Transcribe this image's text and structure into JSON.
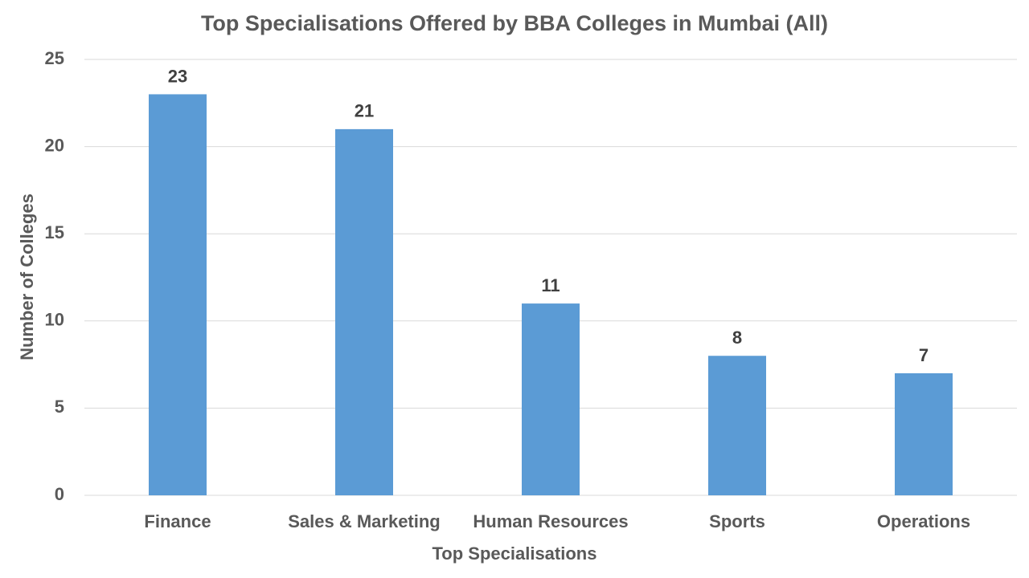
{
  "chart_data": {
    "type": "bar",
    "title": "Top Specialisations Offered by BBA Colleges in Mumbai (All)",
    "x_label": "Top Specialisations",
    "y_label": "Number of Colleges",
    "categories": [
      "Finance",
      "Sales & Marketing",
      "Human Resources",
      "Sports",
      "Operations"
    ],
    "values": [
      23,
      21,
      11,
      8,
      7
    ],
    "color": "#5b9bd5",
    "ylim": [
      0,
      25
    ],
    "yticks": [
      0,
      5,
      10,
      15,
      20,
      25
    ],
    "grid": true,
    "data_labels": true
  }
}
